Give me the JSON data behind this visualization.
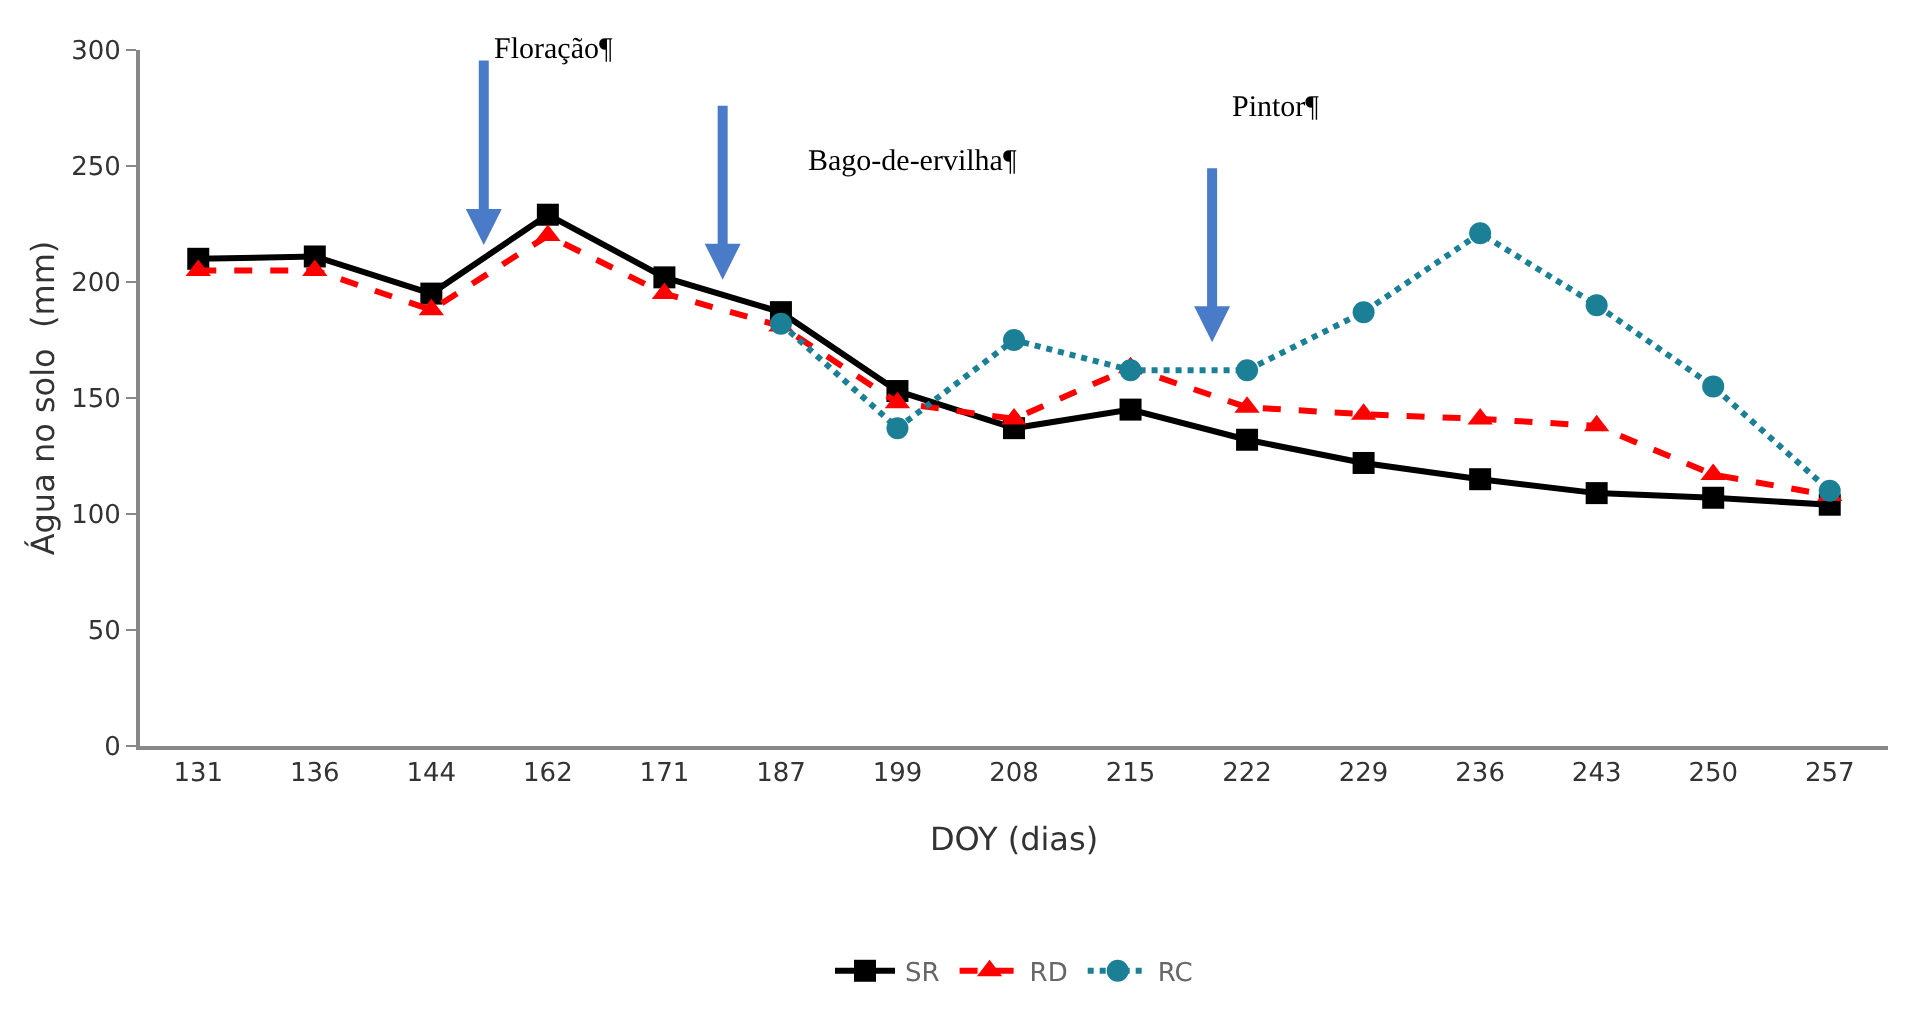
{
  "chart_data": {
    "type": "line",
    "xlabel": "DOY (dias)",
    "ylabel": "Água no solo  (mm)",
    "categories": [
      "131",
      "136",
      "144",
      "162",
      "171",
      "187",
      "199",
      "208",
      "215",
      "222",
      "229",
      "236",
      "243",
      "250",
      "257"
    ],
    "series": [
      {
        "name": "SR",
        "color": "#000000",
        "marker": "square",
        "line_style": "solid",
        "values": [
          210,
          211,
          195,
          229,
          202,
          187,
          153,
          137,
          145,
          132,
          122,
          115,
          109,
          107,
          104
        ]
      },
      {
        "name": "RD",
        "color": "#ff0000",
        "marker": "triangle",
        "line_style": "dashed",
        "values": [
          205,
          205,
          188,
          220,
          195,
          181,
          148,
          141,
          163,
          146,
          143,
          141,
          138,
          117,
          108
        ]
      },
      {
        "name": "RC",
        "color": "#1b7f95",
        "marker": "circle",
        "line_style": "dotted",
        "values": [
          null,
          null,
          null,
          null,
          null,
          182,
          137,
          175,
          162,
          162,
          187,
          221,
          190,
          155,
          110
        ]
      }
    ],
    "annotations": [
      "Floração¶",
      "Bago-de-ervilha¶",
      "Pintor¶"
    ],
    "ylim": [
      0,
      300
    ],
    "yticks": [
      0,
      50,
      100,
      150,
      200,
      250,
      300
    ],
    "grid": false,
    "legend": "bottom"
  }
}
